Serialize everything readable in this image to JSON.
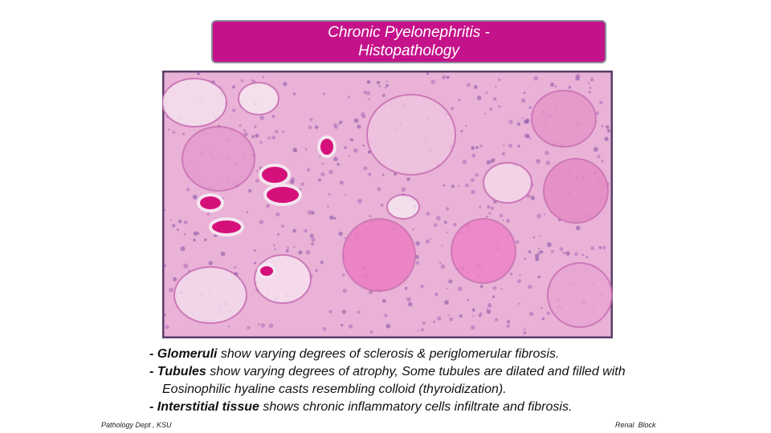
{
  "header": {
    "title": "Chronic Pyelonephritis - Histopathology"
  },
  "bullets": [
    {
      "term": "- Glomeruli",
      "text": " show varying degrees of sclerosis & periglomerular fibrosis."
    },
    {
      "term": "- Tubules",
      "text": " show varying degrees of atrophy, Some tubules are dilated and filled with Eosinophilic hyaline casts resembling colloid (thyroidization)."
    },
    {
      "term": "- Interstitial tissue",
      "text": " shows chronic inflammatory cells infiltrate and fibrosis."
    }
  ],
  "footer": {
    "left": "Pathology Dept , KSU",
    "right": "Renal  Block"
  }
}
